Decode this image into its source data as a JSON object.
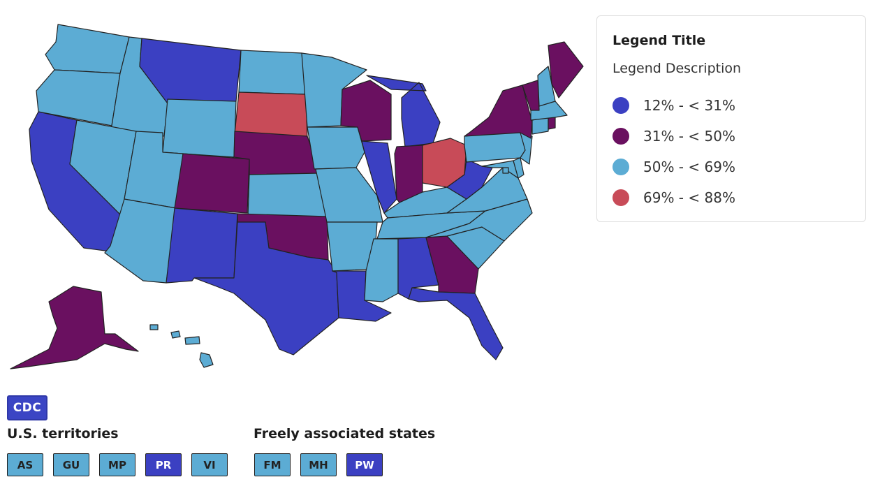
{
  "colors": {
    "bin1": "#3b40c2",
    "bin2": "#6a1060",
    "bin3": "#5cacd4",
    "bin4": "#c84b58"
  },
  "legend": {
    "title": "Legend Title",
    "description": "Legend Description",
    "items": [
      {
        "label": "12% - < 31%",
        "color": "#3b40c2"
      },
      {
        "label": "31% - < 50%",
        "color": "#6a1060"
      },
      {
        "label": "50% - < 69%",
        "color": "#5cacd4"
      },
      {
        "label": "69% - < 88%",
        "color": "#c84b58"
      }
    ]
  },
  "logo": {
    "text": "CDC"
  },
  "territories": {
    "heading": "U.S. territories",
    "items": [
      {
        "code": "AS",
        "bin": "bin3"
      },
      {
        "code": "GU",
        "bin": "bin3"
      },
      {
        "code": "MP",
        "bin": "bin3"
      },
      {
        "code": "PR",
        "bin": "bin1"
      },
      {
        "code": "VI",
        "bin": "bin3"
      }
    ]
  },
  "freely_associated": {
    "heading": "Freely associated states",
    "items": [
      {
        "code": "FM",
        "bin": "bin3"
      },
      {
        "code": "MH",
        "bin": "bin3"
      },
      {
        "code": "PW",
        "bin": "bin1"
      }
    ]
  },
  "states": {
    "WA": "bin3",
    "OR": "bin3",
    "CA": "bin1",
    "ID": "bin3",
    "NV": "bin3",
    "MT": "bin1",
    "WY": "bin3",
    "UT": "bin3",
    "AZ": "bin3",
    "CO": "bin2",
    "NM": "bin1",
    "ND": "bin3",
    "SD": "bin4",
    "NE": "bin2",
    "KS": "bin3",
    "OK": "bin2",
    "TX": "bin1",
    "MN": "bin3",
    "IA": "bin3",
    "MO": "bin3",
    "AR": "bin3",
    "LA": "bin1",
    "WI": "bin2",
    "IL": "bin1",
    "MI": "bin1",
    "IN": "bin2",
    "OH": "bin4",
    "KY": "bin3",
    "TN": "bin3",
    "MS": "bin3",
    "AL": "bin1",
    "GA": "bin2",
    "FL": "bin1",
    "SC": "bin3",
    "NC": "bin3",
    "VA": "bin3",
    "WV": "bin1",
    "PA": "bin3",
    "NY": "bin2",
    "VT": "bin2",
    "NH": "bin3",
    "ME": "bin2",
    "MA": "bin3",
    "CT": "bin3",
    "RI": "bin2",
    "NJ": "bin3",
    "DE": "bin3",
    "MD": "bin3",
    "DC": "bin3",
    "AK": "bin2",
    "HI": "bin3"
  }
}
